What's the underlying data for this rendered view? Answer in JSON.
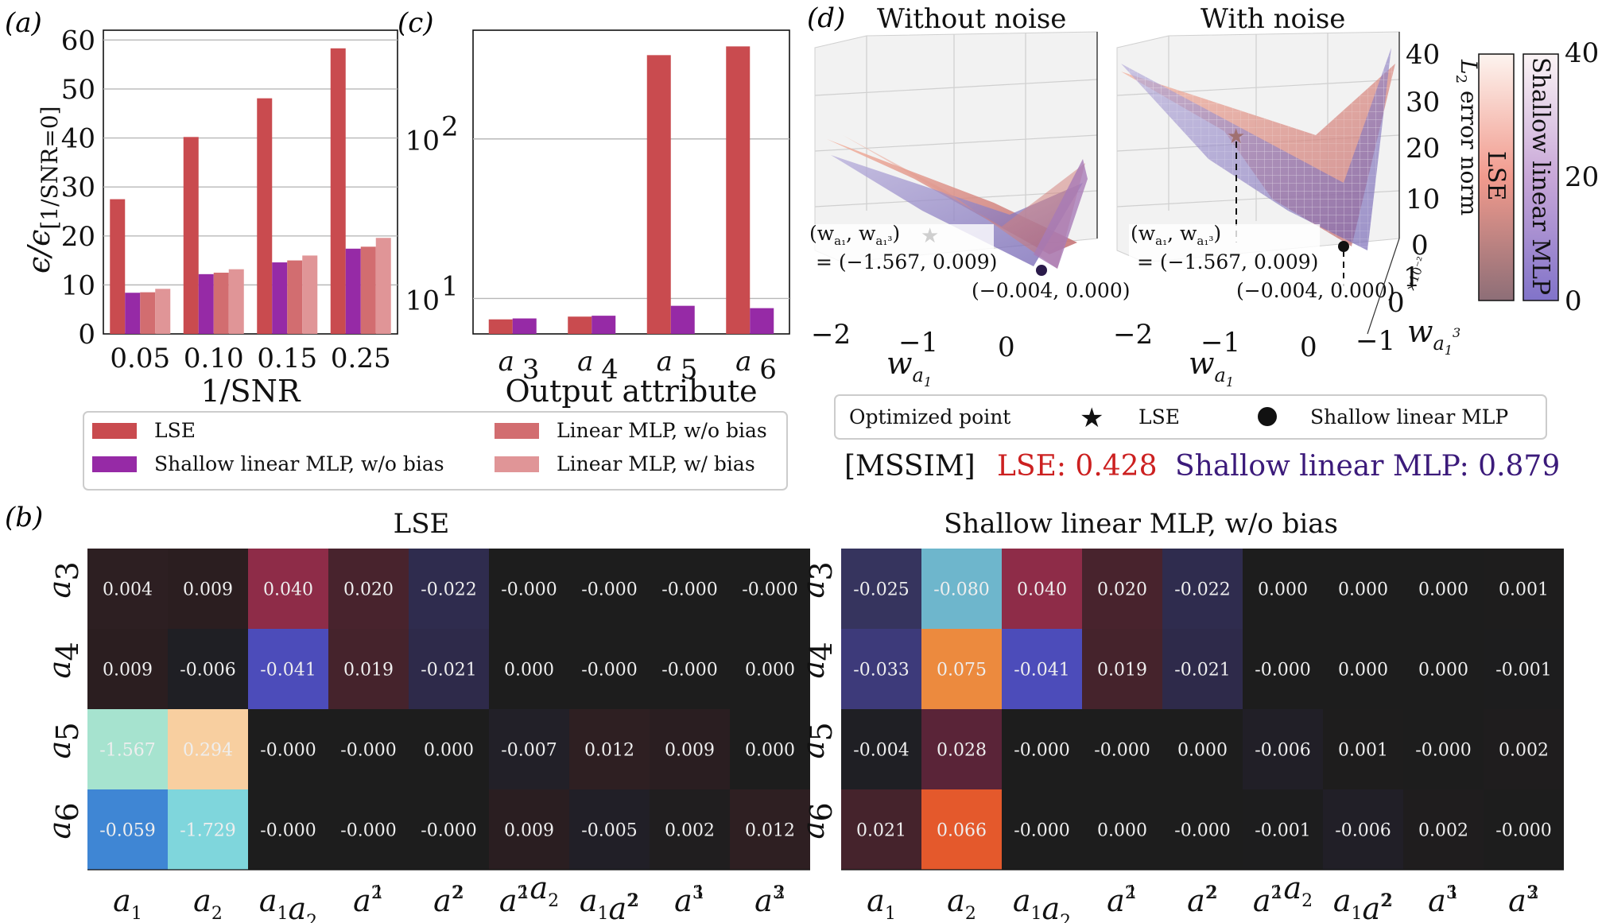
{
  "colors": {
    "lse": "#c94b4f",
    "shallow": "#962aa6",
    "mlp_nobias": "#d26d70",
    "mlp_bias": "#e09597",
    "mssim_lse": "#cc2020",
    "mssim_mlp": "#3b1a7a",
    "grid": "#b8b8b8"
  },
  "panel_labels": {
    "a": "(a)",
    "b": "(b)",
    "c": "(c)",
    "d": "(d)"
  },
  "chart_data": [
    {
      "id": "a",
      "type": "bar",
      "categories": [
        "0.05",
        "0.10",
        "0.15",
        "0.25"
      ],
      "series": [
        {
          "name": "LSE",
          "values": [
            27.5,
            40.2,
            48.1,
            58.3
          ]
        },
        {
          "name": "Shallow linear MLP, w/o bias",
          "values": [
            8.4,
            12.2,
            14.6,
            17.4
          ]
        },
        {
          "name": "Linear MLP, w/o bias",
          "values": [
            8.5,
            12.5,
            15.0,
            17.8
          ]
        },
        {
          "name": "Linear MLP, w/ bias",
          "values": [
            9.2,
            13.2,
            16.0,
            19.6
          ]
        }
      ],
      "xlabel": "1/SNR",
      "ylabel_main": "ϵ/ϵ",
      "ylabel_sub": "[1/SNR=0]",
      "ylim": [
        0,
        62
      ],
      "yticks": [
        "0",
        "10",
        "20",
        "30",
        "40",
        "50",
        "60"
      ],
      "grid": "horizontal",
      "legend_position": "below"
    },
    {
      "id": "c",
      "type": "bar",
      "scale": "log",
      "categories": [
        "a3",
        "a4",
        "a5",
        "a6"
      ],
      "category_base": [
        "a",
        "a",
        "a",
        "a"
      ],
      "category_sub": [
        "3",
        "4",
        "5",
        "6"
      ],
      "series": [
        {
          "name": "LSE",
          "values": [
            7.4,
            7.7,
            335,
            380
          ]
        },
        {
          "name": "Shallow linear MLP, w/o bias",
          "values": [
            7.5,
            7.8,
            9.0,
            8.7
          ]
        }
      ],
      "xlabel": "Output attribute",
      "ylim": [
        6,
        480
      ],
      "ytick_base": [
        "10",
        "10"
      ],
      "ytick_exp": [
        "1",
        "2"
      ],
      "ytick_values": [
        10,
        100
      ],
      "grid": "horizontal"
    },
    {
      "id": "b",
      "type": "heatmap",
      "rows": [
        "a3",
        "a4",
        "a5",
        "a6"
      ],
      "row_base": [
        "a",
        "a",
        "a",
        "a"
      ],
      "row_sub": [
        "3",
        "4",
        "5",
        "6"
      ],
      "columns": [
        "a1",
        "a2",
        "a1a2",
        "a1^2",
        "a2^2",
        "a1^2a2",
        "a1a2^2",
        "a1^3",
        "a2^3"
      ],
      "col_labels": [
        {
          "parts": [
            [
              "a",
              ""
            ],
            [
              "1",
              "sub"
            ]
          ]
        },
        {
          "parts": [
            [
              "a",
              ""
            ],
            [
              "2",
              "sub"
            ]
          ]
        },
        {
          "parts": [
            [
              "a",
              ""
            ],
            [
              "1",
              "sub"
            ],
            [
              "a",
              ""
            ],
            [
              "2",
              "sub"
            ]
          ]
        },
        {
          "parts": [
            [
              "a",
              ""
            ],
            [
              "2",
              "sup"
            ],
            [
              "1",
              "sub"
            ]
          ]
        },
        {
          "parts": [
            [
              "a",
              ""
            ],
            [
              "2",
              "sup"
            ],
            [
              "2",
              "sub"
            ]
          ]
        },
        {
          "parts": [
            [
              "a",
              ""
            ],
            [
              "2",
              "sup"
            ],
            [
              "1",
              "sub"
            ],
            [
              "a",
              ""
            ],
            [
              "2",
              "sub"
            ]
          ]
        },
        {
          "parts": [
            [
              "a",
              ""
            ],
            [
              "1",
              "sub"
            ],
            [
              "a",
              ""
            ],
            [
              "2",
              "sup"
            ],
            [
              "2",
              "sub"
            ]
          ]
        },
        {
          "parts": [
            [
              "a",
              ""
            ],
            [
              "3",
              "sup"
            ],
            [
              "1",
              "sub"
            ]
          ]
        },
        {
          "parts": [
            [
              "a",
              ""
            ],
            [
              "3",
              "sup"
            ],
            [
              "2",
              "sub"
            ]
          ]
        }
      ],
      "maps": [
        {
          "title": "LSE",
          "values": [
            [
              "0.004",
              "0.009",
              "0.040",
              "0.020",
              "-0.022",
              "-0.000",
              "-0.000",
              "-0.000",
              "-0.000"
            ],
            [
              "0.009",
              "-0.006",
              "-0.041",
              "0.019",
              "-0.021",
              "0.000",
              "-0.000",
              "-0.000",
              "0.000"
            ],
            [
              "-1.567",
              "0.294",
              "-0.000",
              "-0.000",
              "0.000",
              "-0.007",
              "0.012",
              "0.009",
              "0.000"
            ],
            [
              "-0.059",
              "-1.729",
              "-0.000",
              "-0.000",
              "-0.000",
              "0.009",
              "-0.005",
              "0.002",
              "0.012"
            ]
          ],
          "cell_colors": [
            [
              "#2d1f22",
              "#2b1e20",
              "#8e2c48",
              "#48232d",
              "#2f2c4e",
              "#1d1d1d",
              "#1d1d1d",
              "#1d1d1d",
              "#1d1d1d"
            ],
            [
              "#2b1e20",
              "#1f1f24",
              "#4c4cba",
              "#45232c",
              "#2e2a4a",
              "#1d1d1d",
              "#1d1d1d",
              "#1d1d1d",
              "#1d1d1d"
            ],
            [
              "#a6e3cf",
              "#f8cfa0",
              "#1d1d1d",
              "#1d1d1d",
              "#1d1d1d",
              "#222028",
              "#2e1f22",
              "#2a1e21",
              "#1d1d1d"
            ],
            [
              "#3f86d4",
              "#7fd6dc",
              "#1d1d1d",
              "#1d1d1d",
              "#1d1d1d",
              "#2a1e21",
              "#211f27",
              "#201e1f",
              "#2e1f22"
            ]
          ]
        },
        {
          "title": "Shallow linear MLP, w/o bias",
          "values": [
            [
              "-0.025",
              "-0.080",
              "0.040",
              "0.020",
              "-0.022",
              "0.000",
              "0.000",
              "0.000",
              "0.001"
            ],
            [
              "-0.033",
              "0.075",
              "-0.041",
              "0.019",
              "-0.021",
              "-0.000",
              "0.000",
              "0.000",
              "-0.001"
            ],
            [
              "-0.004",
              "0.028",
              "-0.000",
              "-0.000",
              "0.000",
              "-0.006",
              "0.001",
              "-0.000",
              "0.002"
            ],
            [
              "0.021",
              "0.066",
              "-0.000",
              "0.000",
              "-0.000",
              "-0.001",
              "-0.006",
              "0.002",
              "-0.000"
            ]
          ],
          "cell_colors": [
            [
              "#36345e",
              "#6eb6cc",
              "#8e2c48",
              "#48232d",
              "#2f2c4e",
              "#1d1d1d",
              "#1d1d1d",
              "#1d1d1d",
              "#1e1d1d"
            ],
            [
              "#3d3a7a",
              "#ec8a3e",
              "#4c4cba",
              "#45232c",
              "#2e2a4a",
              "#1d1d1d",
              "#1d1d1d",
              "#1d1d1d",
              "#1d1d1e"
            ],
            [
              "#1f1f24",
              "#5a2438",
              "#1d1d1d",
              "#1d1d1d",
              "#1d1d1d",
              "#211f27",
              "#1e1d1d",
              "#1d1d1d",
              "#1f1d1e"
            ],
            [
              "#45232c",
              "#e4592c",
              "#1d1d1d",
              "#1d1d1d",
              "#1d1d1d",
              "#1d1d1e",
              "#211f27",
              "#1f1d1e",
              "#1d1d1d"
            ]
          ]
        }
      ]
    },
    {
      "id": "d",
      "type": "surface3d",
      "subplots": [
        "Without noise",
        "With noise"
      ],
      "xlabel_base": "w",
      "xlabel_sub": "a",
      "xlabel_subsub": "1",
      "xticks": [
        "−2",
        "−1",
        "0"
      ],
      "zticks": [
        "0",
        "10",
        "20",
        "30",
        "40"
      ],
      "zlabel": "error norm",
      "zlabel_sym": "L",
      "zlabel_sub": "2",
      "yticks": [
        "−1",
        "0",
        "1"
      ],
      "yscale_note": "×10⁻²",
      "ylabel_base": "w",
      "lse_point_text_1": "(w_{a1}, w_{a1^3})",
      "lse_point_text_2": "= (−1.567, 0.009)",
      "mlp_point_text": "(−0.004, 0.000)",
      "colorbars": [
        {
          "label": "LSE",
          "ticks": []
        },
        {
          "label": "Shallow linear MLP",
          "ticks": [
            "0",
            "20",
            "40"
          ]
        }
      ],
      "legend": {
        "title": "Optimized point",
        "star_label": "LSE",
        "dot_label": "Shallow linear MLP"
      },
      "mssim": {
        "bracket": "[MSSIM]",
        "lse": "LSE: 0.428",
        "mlp": "Shallow linear MLP: 0.879"
      }
    }
  ]
}
